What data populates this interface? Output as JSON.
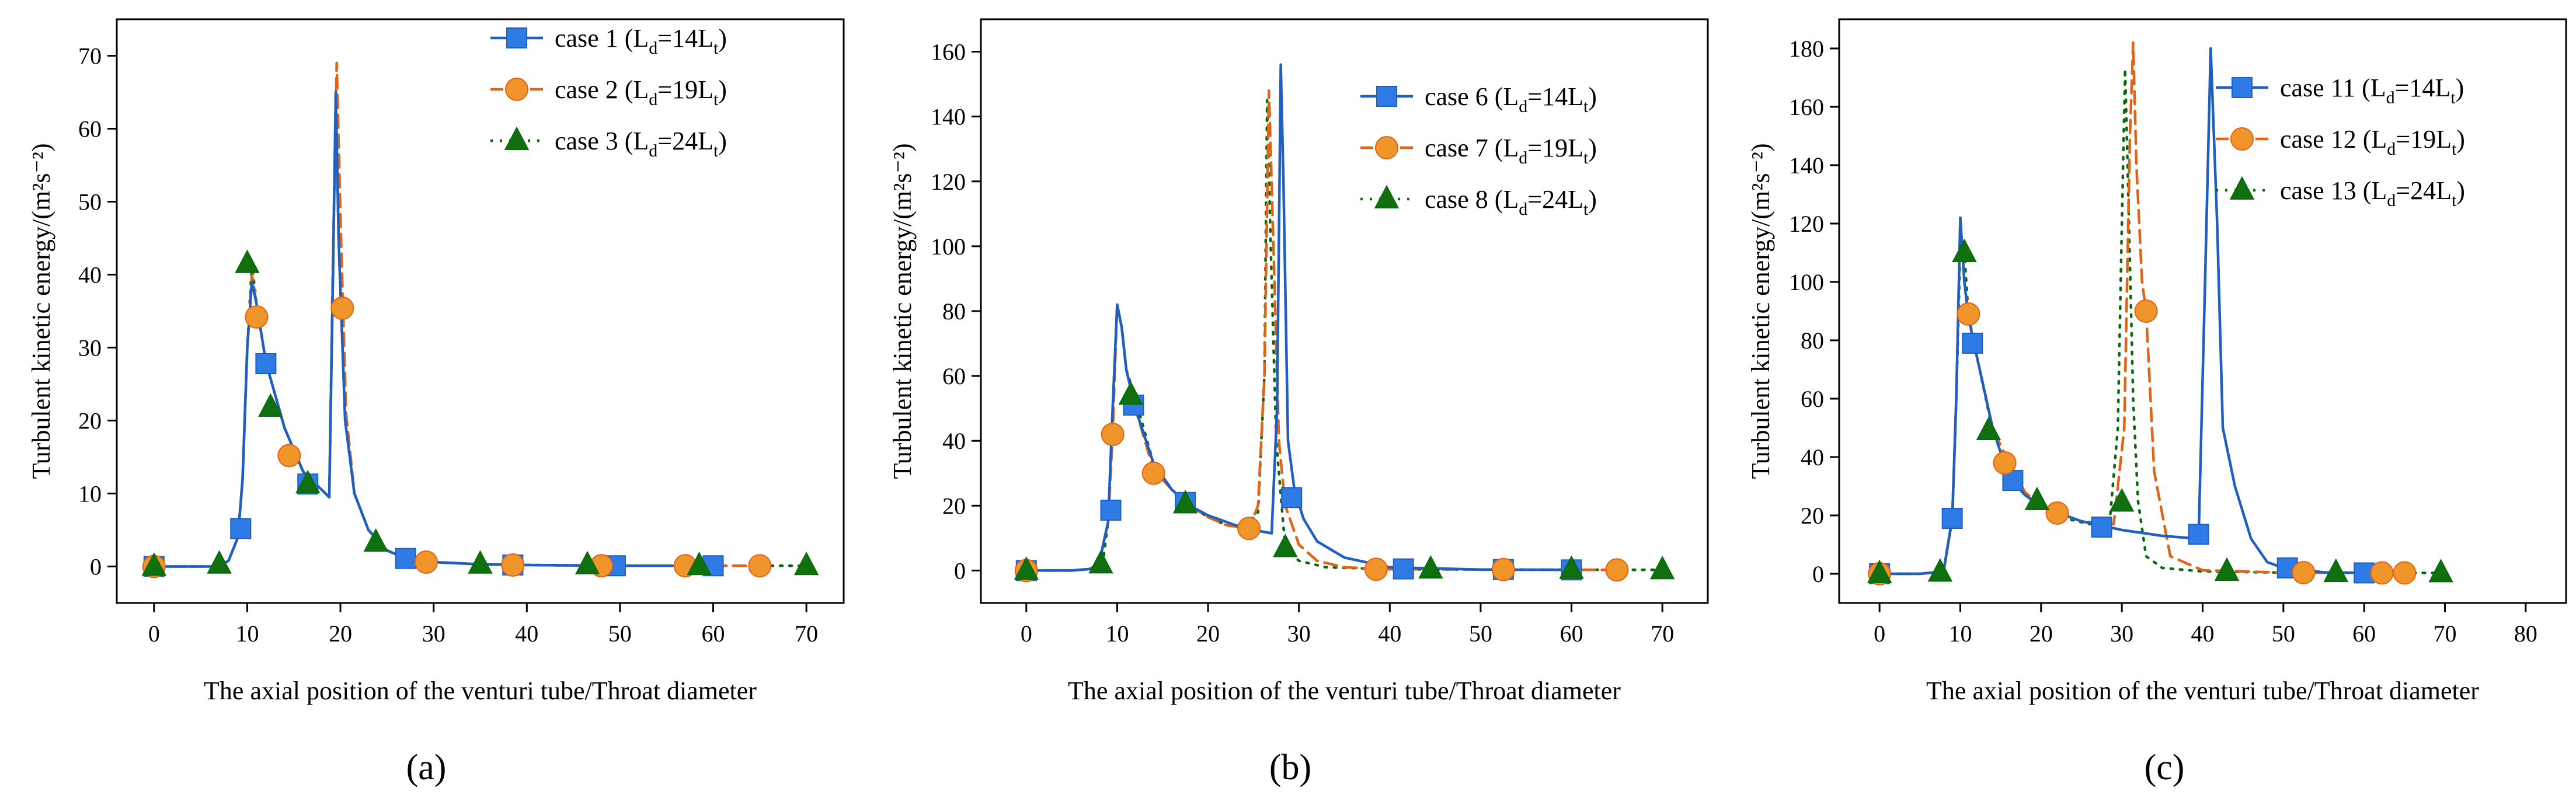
{
  "colors": {
    "series1": "#1f5fc2",
    "series2": "#e06418",
    "series3": "#0a6a0a",
    "marker1_fill": "#2f7be6",
    "marker2_fill": "#f0952a",
    "marker3_fill": "#107010",
    "axis": "#000000"
  },
  "chart_data": [
    {
      "type": "line",
      "panel_label": "(a)",
      "title": "",
      "xlabel": "The axial position of the venturi tube/Throat diameter",
      "ylabel": "Turbulent kinetic energy/(m²s⁻²)",
      "xlim": [
        -4,
        74
      ],
      "ylim": [
        -5,
        75
      ],
      "xticks": [
        0,
        10,
        20,
        30,
        40,
        50,
        60,
        70
      ],
      "yticks": [
        0,
        10,
        20,
        30,
        40,
        50,
        60,
        70
      ],
      "grid": false,
      "legend_position": "top-right",
      "series": [
        {
          "name": "case 1 (L_d=14L_t)",
          "legend_main": "case 1 (L",
          "legend_sub": "d",
          "legend_mid": "=14L",
          "legend_sub2": "t",
          "legend_end": ")",
          "marker": "square",
          "style": "solid",
          "x": [
            0,
            5,
            7,
            8,
            9,
            9.5,
            10,
            10.5,
            11,
            12,
            14,
            16,
            18,
            18.8,
            19.2,
            19.5,
            19.8,
            20.5,
            21.5,
            23,
            25,
            27,
            30,
            35,
            40,
            50,
            60
          ],
          "y": [
            0,
            0,
            0,
            0.8,
            4,
            12,
            30,
            39,
            36,
            28,
            19,
            13,
            10.5,
            9.5,
            40,
            65,
            45,
            20,
            10,
            5,
            2.2,
            1.1,
            0.6,
            0.3,
            0.2,
            0.1,
            0.1
          ],
          "marker_x": [
            0,
            9.3,
            12,
            16.5,
            27,
            38.5,
            49.5,
            60
          ],
          "marker_y": [
            0,
            5.2,
            27.8,
            11.3,
            1.1,
            0.2,
            0.1,
            0.1
          ]
        },
        {
          "name": "case 2 (L_d=19L_t)",
          "legend_main": "case 2 (L",
          "legend_sub": "d",
          "legend_mid": "=19L",
          "legend_sub2": "t",
          "legend_end": ")",
          "marker": "circle",
          "style": "dashed",
          "x": [
            0,
            5,
            7,
            8,
            9,
            9.5,
            10,
            10.5,
            11,
            12,
            14,
            16,
            18,
            18.8,
            19.2,
            19.6,
            20,
            20.6,
            21.5,
            23,
            25,
            27,
            30,
            35,
            40,
            50,
            65
          ],
          "y": [
            0,
            0,
            0,
            0.8,
            4,
            12,
            30,
            40,
            36,
            28,
            19,
            13,
            10.5,
            9.5,
            42,
            69,
            48,
            21,
            10,
            5,
            2.2,
            1.1,
            0.6,
            0.3,
            0.2,
            0.1,
            0.1
          ],
          "marker_x": [
            0,
            11,
            14.5,
            20.2,
            29.2,
            38.5,
            48,
            57,
            65
          ],
          "marker_y": [
            0,
            34.2,
            15.2,
            35.4,
            0.6,
            0.2,
            0.1,
            0.1,
            0.1
          ]
        },
        {
          "name": "case 3 (L_d=24L_t)",
          "legend_main": "case 3 (L",
          "legend_sub": "d",
          "legend_mid": "=24L",
          "legend_sub2": "t",
          "legend_end": ")",
          "marker": "triangle",
          "style": "dotted",
          "x": [
            0,
            5,
            7,
            8,
            9,
            9.5,
            10,
            10.5,
            11,
            12,
            14,
            16,
            18,
            18.8,
            19.2,
            19.5,
            19.8,
            20.5,
            21.5,
            23,
            25,
            27,
            30,
            35,
            40,
            50,
            70
          ],
          "y": [
            0,
            0,
            0,
            0.8,
            4,
            12,
            30,
            41.5,
            36,
            28,
            19,
            13,
            10.5,
            9.5,
            40,
            65,
            45,
            20,
            10,
            5,
            2.2,
            1.1,
            0.6,
            0.3,
            0.2,
            0.1,
            0.1
          ],
          "marker_x": [
            0,
            7,
            10,
            12.5,
            16.5,
            23.8,
            35,
            46.5,
            58.5,
            70
          ],
          "marker_y": [
            0,
            0.3,
            41.5,
            21.8,
            11.3,
            3.3,
            0.3,
            0.2,
            0.1,
            0.1
          ]
        }
      ]
    },
    {
      "type": "line",
      "panel_label": "(b)",
      "title": "",
      "xlabel": "The axial position of the venturi tube/Throat diameter",
      "ylabel": "Turbulent kinetic energy/(m²s⁻²)",
      "xlim": [
        -5,
        75
      ],
      "ylim": [
        -10,
        170
      ],
      "xticks": [
        0,
        10,
        20,
        30,
        40,
        50,
        60,
        70
      ],
      "yticks": [
        0,
        20,
        40,
        60,
        80,
        100,
        120,
        140,
        160
      ],
      "grid": false,
      "legend_position": "top-right",
      "series": [
        {
          "name": "case 6 (L_d=14L_t)",
          "legend_main": "case 6 (L",
          "legend_sub": "d",
          "legend_mid": "=14L",
          "legend_sub2": "t",
          "legend_end": ")",
          "marker": "square",
          "style": "solid",
          "x": [
            0,
            5,
            7,
            8,
            9,
            9.5,
            10,
            10.5,
            11,
            12,
            14,
            16,
            18,
            20,
            23,
            25,
            27,
            27.6,
            28,
            28.3,
            28.8,
            29.5,
            30.5,
            32,
            35,
            40,
            50,
            60
          ],
          "y": [
            0,
            0,
            0.5,
            2,
            15,
            50,
            82,
            75,
            62,
            50,
            33,
            25,
            20,
            17,
            14,
            12.5,
            11.5,
            50,
            156,
            120,
            40,
            25,
            16,
            9,
            4,
            1,
            0.3,
            0.2
          ],
          "marker_x": [
            0,
            9.3,
            11.8,
            17.5,
            29.2,
            41.5,
            52.5,
            60
          ],
          "marker_y": [
            0,
            18.6,
            51,
            21,
            22.5,
            0.5,
            0.3,
            0.2
          ]
        },
        {
          "name": "case 7 (L_d=19L_t)",
          "legend_main": "case 7 (L",
          "legend_sub": "d",
          "legend_mid": "=19L",
          "legend_sub2": "t",
          "legend_end": ")",
          "marker": "circle",
          "style": "dashed",
          "x": [
            0,
            5,
            7,
            8,
            9,
            9.5,
            10,
            10.5,
            11,
            12,
            14,
            16,
            18,
            20,
            22,
            24.5,
            25.5,
            26.2,
            26.7,
            27.2,
            27.8,
            28.5,
            30,
            32,
            35,
            40,
            50,
            65
          ],
          "y": [
            0,
            0,
            0.5,
            2,
            15,
            42,
            82,
            75,
            62,
            50,
            31,
            25,
            20,
            16.5,
            14,
            13,
            20,
            60,
            148,
            100,
            40,
            20,
            8,
            3,
            1,
            0.4,
            0.3,
            0.2
          ],
          "marker_x": [
            0,
            9.5,
            14,
            24.5,
            38.5,
            52.5,
            65
          ],
          "marker_y": [
            0,
            42,
            30,
            13,
            0.4,
            0.3,
            0.2
          ]
        },
        {
          "name": "case 8 (L_d=24L_t)",
          "legend_main": "case 8 (L",
          "legend_sub": "d",
          "legend_mid": "=24L",
          "legend_sub2": "t",
          "legend_end": ")",
          "marker": "triangle",
          "style": "dotted",
          "x": [
            0,
            5,
            7,
            8,
            8.5,
            9,
            9.5,
            10,
            10.5,
            11,
            12,
            14,
            16,
            18,
            20,
            22,
            24,
            25.5,
            26.2,
            26.5,
            26.9,
            27.5,
            28.5,
            30,
            33,
            40,
            50,
            70
          ],
          "y": [
            0,
            0,
            0.5,
            2,
            4,
            15,
            50,
            82,
            75,
            62,
            53,
            33,
            25,
            20,
            16.5,
            14,
            13,
            18,
            60,
            145,
            100,
            40,
            7,
            3,
            1,
            0.4,
            0.3,
            0.2
          ],
          "marker_x": [
            0,
            8.2,
            11.5,
            17.5,
            28.5,
            44.5,
            60,
            70
          ],
          "marker_y": [
            0,
            2,
            54,
            20.5,
            7,
            0.4,
            0.3,
            0.2
          ]
        }
      ]
    },
    {
      "type": "line",
      "panel_label": "(c)",
      "title": "",
      "xlabel": "The axial position of the venturi tube/Throat diameter",
      "ylabel": "Turbulent kinetic energy/(m²s⁻²)",
      "xlim": [
        -5,
        85
      ],
      "ylim": [
        -10,
        190
      ],
      "xticks": [
        0,
        10,
        20,
        30,
        40,
        50,
        60,
        70,
        80
      ],
      "yticks": [
        0,
        20,
        40,
        60,
        80,
        100,
        120,
        140,
        160,
        180
      ],
      "grid": false,
      "legend_position": "top-right",
      "series": [
        {
          "name": "case 11 (L_d=14L_t)",
          "legend_main": "case 11 (L",
          "legend_sub": "d",
          "legend_mid": "=14L",
          "legend_sub2": "t",
          "legend_end": ")",
          "marker": "square",
          "style": "solid",
          "x": [
            0,
            5,
            7,
            8,
            9,
            9.5,
            10,
            10.5,
            11,
            12,
            14,
            16,
            18,
            20,
            25,
            30,
            35,
            39.5,
            40.3,
            41,
            41.8,
            42.5,
            44,
            46,
            48,
            50,
            55,
            60
          ],
          "y": [
            0,
            0,
            0.5,
            2,
            19,
            60,
            122,
            100,
            88,
            75,
            50,
            33,
            27,
            23,
            18,
            15,
            13,
            12,
            100,
            180,
            120,
            50,
            30,
            12,
            4,
            2,
            0.5,
            0.3
          ],
          "marker_x": [
            0,
            9,
            11.5,
            16.5,
            27.5,
            39.5,
            50.5,
            60
          ],
          "marker_y": [
            0,
            19,
            79,
            32,
            16,
            13.5,
            2,
            0.3
          ]
        },
        {
          "name": "case 12 (L_d=19L_t)",
          "legend_main": "case 12 (L",
          "legend_sub": "d",
          "legend_mid": "=19L",
          "legend_sub2": "t",
          "legend_end": ")",
          "marker": "circle",
          "style": "dashed",
          "x": [
            0,
            5,
            7,
            8,
            9,
            9.5,
            10,
            10.5,
            11,
            12,
            14,
            16,
            18,
            20,
            22,
            25,
            29,
            30.3,
            31,
            31.4,
            31.8,
            32.5,
            33,
            34,
            36,
            40,
            50,
            65
          ],
          "y": [
            0,
            0,
            0.5,
            2,
            19,
            60,
            122,
            100,
            89,
            75,
            50,
            38,
            28,
            23,
            20.8,
            18,
            17,
            50,
            150,
            182,
            140,
            100,
            90,
            35,
            6,
            1.2,
            0.4,
            0.3
          ],
          "marker_x": [
            0,
            11,
            15.5,
            22,
            33,
            52.5,
            62.2,
            65
          ],
          "marker_y": [
            0,
            89,
            38,
            20.8,
            90,
            0.4,
            0.3,
            0.3
          ]
        },
        {
          "name": "case 13 (L_d=24L_t)",
          "legend_main": "case 13 (L",
          "legend_sub": "d",
          "legend_mid": "=24L",
          "legend_sub2": "t",
          "legend_end": ")",
          "marker": "triangle",
          "style": "dotted",
          "x": [
            0,
            5,
            7,
            8,
            9,
            9.5,
            10,
            10.5,
            11,
            12,
            14,
            16,
            18,
            20,
            23,
            26,
            28.5,
            29.5,
            30,
            30.4,
            30.8,
            31.4,
            32,
            33,
            35,
            40,
            50,
            70
          ],
          "y": [
            0,
            0,
            0.5,
            2,
            19,
            60,
            112,
            110,
            89,
            75,
            49,
            35,
            27,
            23,
            19,
            17,
            18,
            50,
            120,
            173,
            130,
            60,
            25,
            6,
            2,
            0.8,
            0.4,
            0.3
          ],
          "marker_x": [
            0,
            7.5,
            10.5,
            13.5,
            19.5,
            30,
            43,
            56.5,
            69.5
          ],
          "marker_y": [
            0,
            0.5,
            110,
            49,
            25,
            24.5,
            0.8,
            0.4,
            0.3
          ]
        }
      ]
    }
  ]
}
